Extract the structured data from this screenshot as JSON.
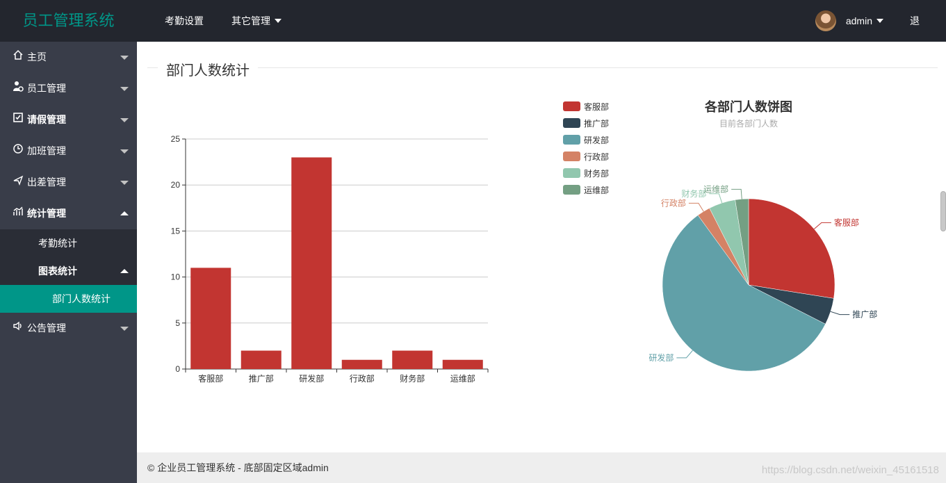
{
  "header": {
    "logo": "员工管理系统",
    "nav": [
      {
        "label": "考勤设置"
      },
      {
        "label": "其它管理"
      }
    ],
    "username": "admin",
    "logout": "退出"
  },
  "sidebar": {
    "items": [
      {
        "label": "主页",
        "icon": "home-icon"
      },
      {
        "label": "员工管理",
        "icon": "user-icon"
      },
      {
        "label": "请假管理",
        "icon": "leave-icon"
      },
      {
        "label": "加班管理",
        "icon": "clock-icon"
      },
      {
        "label": "出差管理",
        "icon": "plane-icon"
      },
      {
        "label": "统计管理",
        "icon": "chart-icon"
      },
      {
        "label": "公告管理",
        "icon": "speaker-icon"
      }
    ],
    "stats_sub": [
      {
        "label": "考勤统计"
      },
      {
        "label": "图表统计"
      }
    ],
    "chart_sub": [
      {
        "label": "部门人数统计"
      }
    ]
  },
  "main": {
    "section_title": "部门人数统计"
  },
  "footer": {
    "text": "© 企业员工管理系统 - 底部固定区域admin",
    "watermark": "https://blog.csdn.net/weixin_45161518"
  },
  "colors": {
    "accent": "#009688",
    "bar": "#c23531"
  },
  "chart_data": [
    {
      "type": "bar",
      "categories": [
        "客服部",
        "推广部",
        "研发部",
        "行政部",
        "财务部",
        "运维部"
      ],
      "values": [
        11,
        2,
        23,
        1,
        2,
        1
      ],
      "ylim": [
        0,
        25
      ],
      "yticks": [
        0,
        5,
        10,
        15,
        20,
        25
      ],
      "grid": true,
      "color": "#c23531"
    },
    {
      "type": "pie",
      "title": "各部门人数饼图",
      "subtitle": "目前各部门人数",
      "legend_position": "top-left",
      "slices": [
        {
          "name": "客服部",
          "value": 11,
          "color": "#c23531"
        },
        {
          "name": "推广部",
          "value": 2,
          "color": "#2f4554"
        },
        {
          "name": "研发部",
          "value": 23,
          "color": "#61a0a8"
        },
        {
          "name": "行政部",
          "value": 1,
          "color": "#d48265"
        },
        {
          "name": "财务部",
          "value": 2,
          "color": "#91c7ae"
        },
        {
          "name": "运维部",
          "value": 1,
          "color": "#749f83"
        }
      ]
    }
  ]
}
